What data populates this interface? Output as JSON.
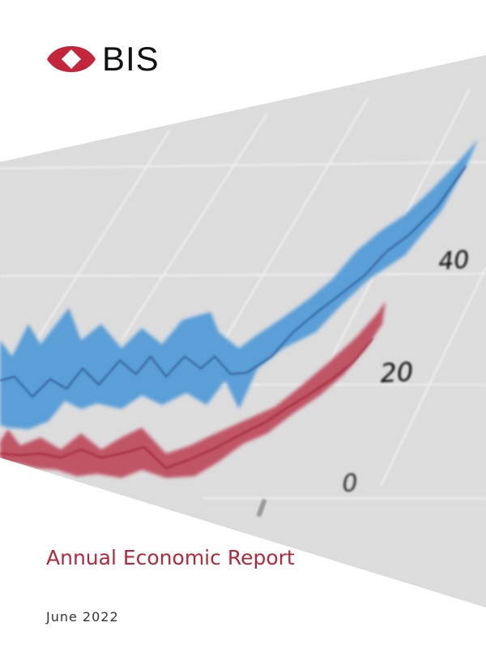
{
  "brand": {
    "name": "BIS",
    "logo_color": "#c4253a"
  },
  "cover": {
    "title": "Annual Economic Report",
    "date": "June 2022"
  },
  "illustration": {
    "kind": "blurred line chart in perspective",
    "tick_labels": [
      "40",
      "20",
      "0"
    ],
    "series_colors": {
      "blue": "#5a9fd8",
      "red": "#c05566"
    },
    "background": "#dcdcdc"
  }
}
